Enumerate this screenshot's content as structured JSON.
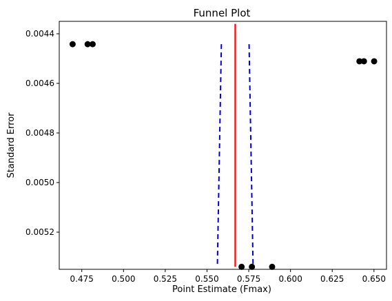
{
  "chart_data": {
    "type": "scatter",
    "title": "Funnel Plot",
    "xlabel": "Point Estimate (Fmax)",
    "ylabel": "Standard Error",
    "xlim": [
      0.4615,
      0.6575
    ],
    "ylim": [
      0.00435,
      0.00535
    ],
    "y_inverted": true,
    "grid": false,
    "xticks": [
      0.475,
      0.5,
      0.525,
      0.55,
      0.575,
      0.6,
      0.625,
      0.65
    ],
    "xtick_labels": [
      "0.475",
      "0.500",
      "0.525",
      "0.550",
      "0.575",
      "0.600",
      "0.625",
      "0.650"
    ],
    "yticks": [
      0.0044,
      0.0046,
      0.0048,
      0.005,
      0.0052
    ],
    "ytick_labels": [
      "0.0044",
      "0.0046",
      "0.0048",
      "0.0050",
      "0.0052"
    ],
    "points": [
      {
        "x": 0.4695,
        "y": 0.004442
      },
      {
        "x": 0.4785,
        "y": 0.004442
      },
      {
        "x": 0.4815,
        "y": 0.004442
      },
      {
        "x": 0.6413,
        "y": 0.004511
      },
      {
        "x": 0.644,
        "y": 0.004511
      },
      {
        "x": 0.6501,
        "y": 0.004511
      },
      {
        "x": 0.5707,
        "y": 0.00534
      },
      {
        "x": 0.5769,
        "y": 0.00534
      },
      {
        "x": 0.589,
        "y": 0.00534
      }
    ],
    "point_color": "#000000",
    "center_line": {
      "x": 0.5669,
      "y_range": [
        0.00436,
        0.00534
      ],
      "color": "#ff0000"
    },
    "funnel_lines": [
      {
        "x_top": 0.5586,
        "x_bottom": 0.5562,
        "y_range": [
          0.004442,
          0.00534
        ],
        "color": "#0000cc"
      },
      {
        "x_top": 0.5752,
        "x_bottom": 0.5776,
        "y_range": [
          0.004442,
          0.00534
        ],
        "color": "#0000cc"
      }
    ]
  }
}
